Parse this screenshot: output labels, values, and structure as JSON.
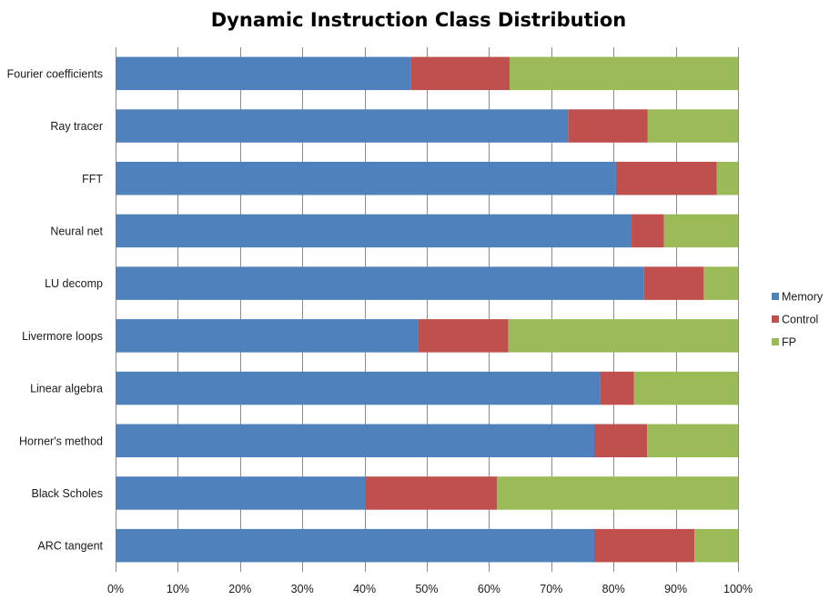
{
  "chart_data": {
    "type": "bar",
    "orientation": "horizontal",
    "stacked": "percent",
    "title": "Dynamic Instruction Class Distribution",
    "xlabel": "",
    "ylabel": "",
    "xlim": [
      0,
      100
    ],
    "x_ticks": [
      "0%",
      "10%",
      "20%",
      "30%",
      "40%",
      "50%",
      "60%",
      "70%",
      "80%",
      "90%",
      "100%"
    ],
    "grid": "vertical",
    "legend_position": "right",
    "categories": [
      "Fourier coefficients",
      "Ray tracer",
      "FFT",
      "Neural net",
      "LU decomp",
      "Livermore loops",
      "Linear algebra",
      "Horner's method",
      "Black Scholes",
      "ARC tangent"
    ],
    "series": [
      {
        "name": "Memory",
        "color": "#4f81bd",
        "values": [
          47.4,
          72.7,
          80.4,
          82.9,
          84.9,
          48.6,
          77.8,
          76.9,
          40.1,
          76.9
        ]
      },
      {
        "name": "Control",
        "color": "#c0504d",
        "values": [
          15.9,
          12.8,
          16.2,
          5.2,
          9.6,
          14.5,
          5.5,
          8.5,
          21.2,
          16.1
        ]
      },
      {
        "name": "FP",
        "color": "#9bbb59",
        "values": [
          36.7,
          14.5,
          3.4,
          11.9,
          5.5,
          36.9,
          16.7,
          14.6,
          38.7,
          7.0
        ]
      }
    ]
  }
}
